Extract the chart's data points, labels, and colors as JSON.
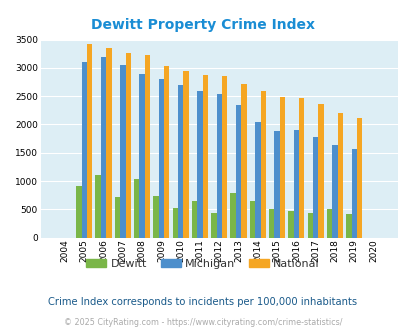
{
  "title": "Dewitt Property Crime Index",
  "years": [
    2004,
    2005,
    2006,
    2007,
    2008,
    2009,
    2010,
    2011,
    2012,
    2013,
    2014,
    2015,
    2016,
    2017,
    2018,
    2019,
    2020
  ],
  "dewitt": [
    0,
    920,
    1100,
    720,
    1040,
    730,
    520,
    650,
    440,
    780,
    650,
    510,
    470,
    430,
    510,
    420,
    0
  ],
  "michigan": [
    0,
    3100,
    3200,
    3050,
    2900,
    2800,
    2700,
    2600,
    2530,
    2340,
    2050,
    1880,
    1900,
    1780,
    1630,
    1560,
    0
  ],
  "national": [
    0,
    3420,
    3350,
    3270,
    3220,
    3040,
    2940,
    2880,
    2860,
    2720,
    2590,
    2490,
    2470,
    2360,
    2200,
    2110,
    0
  ],
  "dewitt_color": "#7ab648",
  "michigan_color": "#4d8fcc",
  "national_color": "#f5a623",
  "bg_color": "#ddeef5",
  "ylim": [
    0,
    3500
  ],
  "yticks": [
    0,
    500,
    1000,
    1500,
    2000,
    2500,
    3000,
    3500
  ],
  "subtitle": "Crime Index corresponds to incidents per 100,000 inhabitants",
  "footer": "© 2025 CityRating.com - https://www.cityrating.com/crime-statistics/",
  "title_color": "#1a8dd4",
  "subtitle_color": "#1a5a8a",
  "footer_color": "#aaaaaa",
  "legend_labels": [
    "Dewitt",
    "Michigan",
    "National"
  ]
}
